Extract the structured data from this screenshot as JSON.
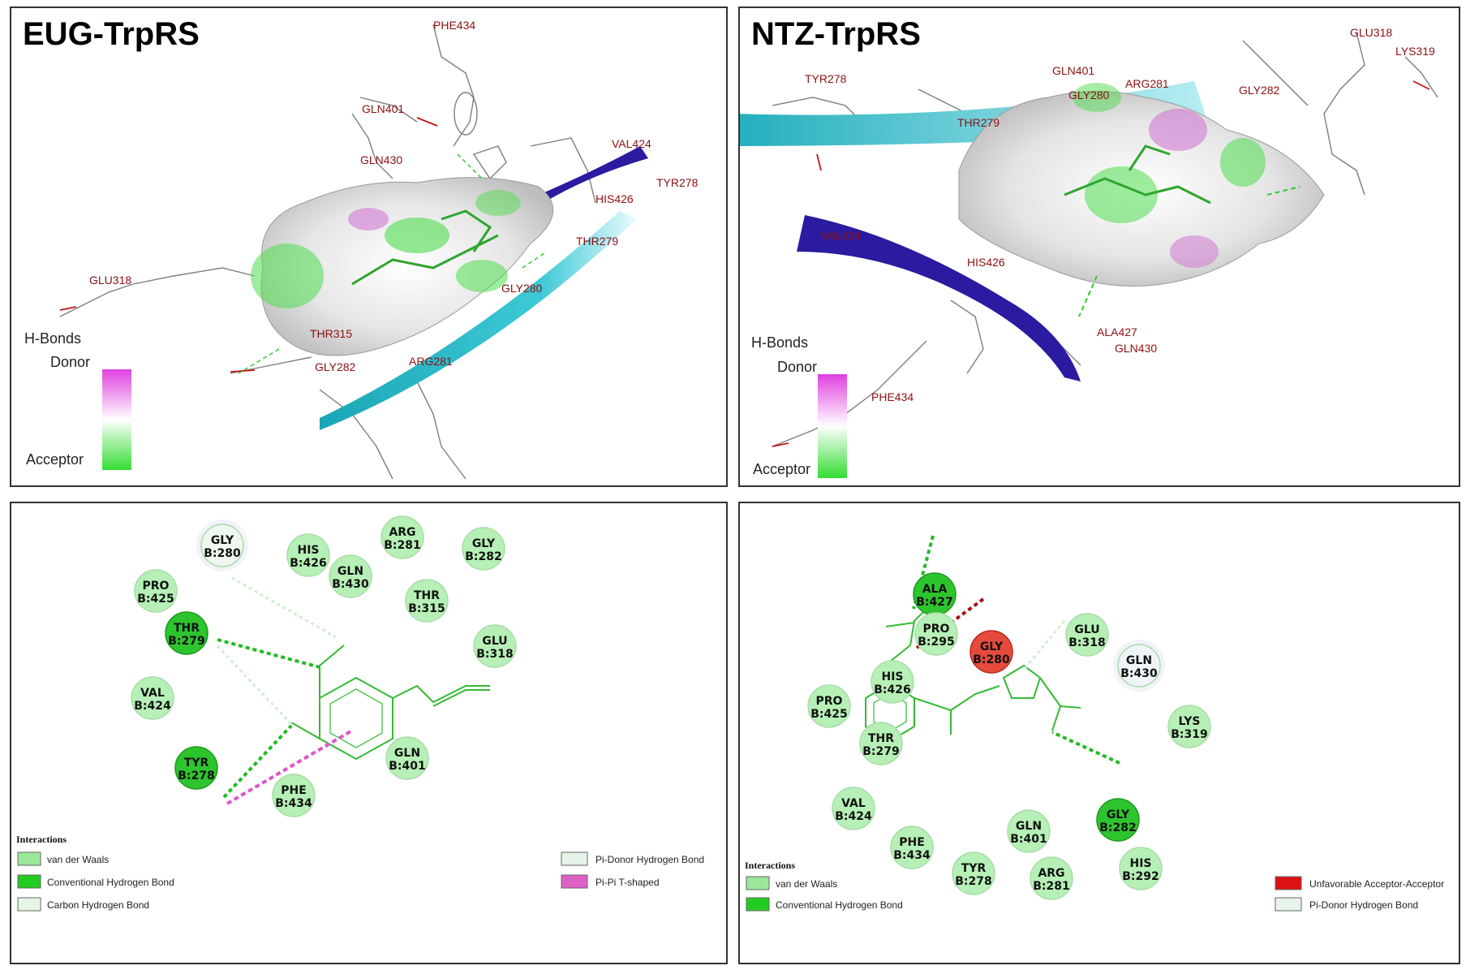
{
  "panels": {
    "eug_3d": {
      "title": "EUG-TrpRS",
      "residue_labels": [
        "PHE434",
        "GLN401",
        "GLN430",
        "VAL424",
        "TYR278",
        "HIS426",
        "THR279",
        "GLY280",
        "GLU318",
        "THR315",
        "GLY282",
        "ARG281"
      ],
      "hbond_legend": {
        "title": "H-Bonds",
        "donor": "Donor",
        "acceptor": "Acceptor"
      }
    },
    "ntz_3d": {
      "title": "NTZ-TrpRS",
      "residue_labels": [
        "GLU318",
        "LYS319",
        "TYR278",
        "GLN401",
        "ARG281",
        "GLY282",
        "THR279",
        "GLY280",
        "VAL424",
        "HIS426",
        "ALA427",
        "GLN430",
        "PHE434"
      ],
      "hbond_legend": {
        "title": "H-Bonds",
        "donor": "Donor",
        "acceptor": "Acceptor"
      }
    },
    "eug_2d": {
      "residues": [
        {
          "name": "GLY",
          "num": "B:280",
          "type": "carbon"
        },
        {
          "name": "HIS",
          "num": "B:426",
          "type": "vdw"
        },
        {
          "name": "ARG",
          "num": "B:281",
          "type": "vdw"
        },
        {
          "name": "GLY",
          "num": "B:282",
          "type": "vdw"
        },
        {
          "name": "GLN",
          "num": "B:430",
          "type": "vdw"
        },
        {
          "name": "PRO",
          "num": "B:425",
          "type": "vdw"
        },
        {
          "name": "THR",
          "num": "B:279",
          "type": "hbond"
        },
        {
          "name": "THR",
          "num": "B:315",
          "type": "vdw"
        },
        {
          "name": "GLU",
          "num": "B:318",
          "type": "vdw"
        },
        {
          "name": "VAL",
          "num": "B:424",
          "type": "vdw"
        },
        {
          "name": "TYR",
          "num": "B:278",
          "type": "hbond"
        },
        {
          "name": "GLN",
          "num": "B:401",
          "type": "vdw"
        },
        {
          "name": "PHE",
          "num": "B:434",
          "type": "vdw"
        }
      ],
      "legend": {
        "title": "Interactions",
        "items": [
          {
            "label": "van der Waals",
            "color": "#9be89b"
          },
          {
            "label": "Conventional Hydrogen Bond",
            "color": "#22cc22"
          },
          {
            "label": "Carbon Hydrogen Bond",
            "color": "#e4f7e4"
          },
          {
            "label": "Pi-Donor Hydrogen Bond",
            "color": "#e8f4e8"
          },
          {
            "label": "Pi-Pi T-shaped",
            "color": "#e060c8"
          }
        ]
      }
    },
    "ntz_2d": {
      "residues": [
        {
          "name": "ALA",
          "num": "B:427",
          "type": "hbond"
        },
        {
          "name": "PRO",
          "num": "B:295",
          "type": "vdw"
        },
        {
          "name": "GLY",
          "num": "B:280",
          "type": "unfav"
        },
        {
          "name": "GLU",
          "num": "B:318",
          "type": "vdw"
        },
        {
          "name": "GLN",
          "num": "B:430",
          "type": "pidonor"
        },
        {
          "name": "HIS",
          "num": "B:426",
          "type": "vdw"
        },
        {
          "name": "PRO",
          "num": "B:425",
          "type": "vdw"
        },
        {
          "name": "LYS",
          "num": "B:319",
          "type": "vdw"
        },
        {
          "name": "THR",
          "num": "B:279",
          "type": "vdw"
        },
        {
          "name": "VAL",
          "num": "B:424",
          "type": "vdw"
        },
        {
          "name": "GLN",
          "num": "B:401",
          "type": "vdw"
        },
        {
          "name": "GLY",
          "num": "B:282",
          "type": "hbond"
        },
        {
          "name": "PHE",
          "num": "B:434",
          "type": "vdw"
        },
        {
          "name": "TYR",
          "num": "B:278",
          "type": "vdw"
        },
        {
          "name": "ARG",
          "num": "B:281",
          "type": "vdw"
        },
        {
          "name": "HIS",
          "num": "B:292",
          "type": "vdw"
        }
      ],
      "legend": {
        "title": "Interactions",
        "items": [
          {
            "label": "van der Waals",
            "color": "#9be89b"
          },
          {
            "label": "Conventional Hydrogen Bond",
            "color": "#22cc22"
          },
          {
            "label": "Unfavorable Acceptor-Acceptor",
            "color": "#dd1111"
          },
          {
            "label": "Pi-Donor Hydrogen Bond",
            "color": "#e8f4e8"
          }
        ]
      }
    }
  },
  "colors": {
    "vdw": "#b6f0b6",
    "hbond": "#2ec42e",
    "carbon": "#eef8ee",
    "pidonor": "#eef4f8",
    "unfav": "#e64a3c",
    "ligand": "#33bb33",
    "label3d": "#8b1010",
    "ribbon_dark": "#2a1ba0",
    "ribbon_cyan": "#27b8c8",
    "donor": "#e040e0",
    "acceptor": "#33dd33"
  }
}
